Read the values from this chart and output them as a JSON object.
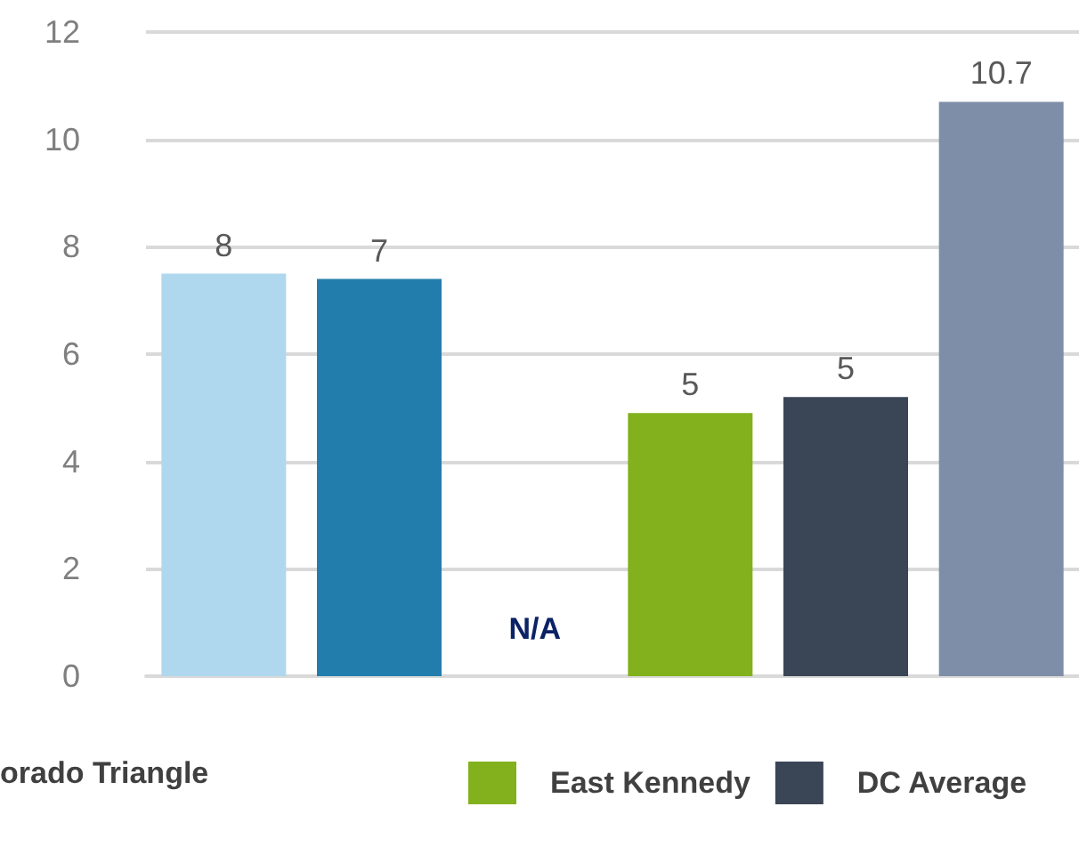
{
  "chart_data": {
    "type": "bar",
    "categories": [
      null,
      null,
      null,
      null,
      null,
      null
    ],
    "series": [
      {
        "color": "#afd8ee",
        "values": [
          7.5,
          null,
          null,
          null,
          null,
          null
        ],
        "value_labels": [
          "8",
          null,
          null,
          null,
          null,
          null
        ]
      },
      {
        "color": "#237dac",
        "values": [
          null,
          7.4,
          null,
          null,
          null,
          null
        ],
        "value_labels": [
          null,
          "7",
          null,
          null,
          null,
          null
        ]
      },
      {
        "values": [
          null,
          null,
          null,
          null,
          null,
          null
        ],
        "value_labels": [
          null,
          null,
          "N/A",
          null,
          null,
          null
        ]
      },
      {
        "name": "East Kennedy",
        "color": "#82b11d",
        "values": [
          null,
          null,
          null,
          4.9,
          null,
          null
        ],
        "value_labels": [
          null,
          null,
          null,
          "5",
          null,
          null
        ]
      },
      {
        "name": "DC Average",
        "color": "#3a4556",
        "values": [
          null,
          null,
          null,
          null,
          5.2,
          null
        ],
        "value_labels": [
          null,
          null,
          null,
          null,
          "5",
          null
        ]
      },
      {
        "color": "#7f8ea8",
        "values": [
          null,
          null,
          null,
          null,
          null,
          10.7
        ],
        "value_labels": [
          null,
          null,
          null,
          null,
          null,
          "10.7"
        ]
      }
    ],
    "ylim": [
      0,
      12
    ],
    "yticks": [
      0,
      2,
      4,
      6,
      8,
      10,
      12
    ],
    "grid": "y",
    "tick_labels": "y",
    "legend": "bottom",
    "annotations": [
      "orado Triangle"
    ]
  }
}
